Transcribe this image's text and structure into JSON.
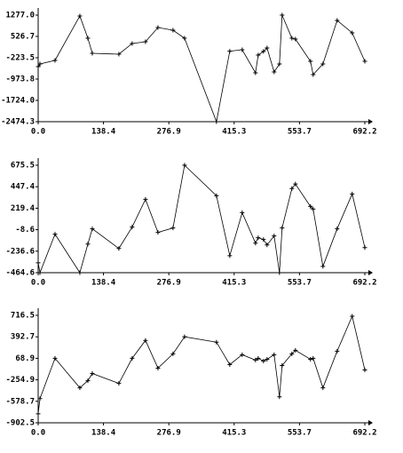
{
  "chart_data": [
    {
      "type": "line",
      "color": "#000000",
      "x": [
        0,
        3.8,
        35.7,
        88.3,
        105.3,
        114.7,
        171,
        199.2,
        227.4,
        253.8,
        285.7,
        310.2,
        377.8,
        406,
        432.3,
        460.5,
        466.2,
        477.4,
        485,
        500,
        511.3,
        516.9,
        537.6,
        545.1,
        577,
        582.7,
        603.4,
        633.5,
        665.4,
        692.2
      ],
      "values": [
        -536,
        -442,
        -317,
        1246,
        464,
        -67,
        -98,
        277,
        339,
        839,
        746,
        464,
        -2474.3,
        8,
        58,
        -755,
        -130,
        -2,
        120,
        -724,
        -442,
        1277,
        464,
        433,
        -349,
        -817,
        -442,
        1089,
        652,
        -349
      ],
      "xlim": [
        0,
        692.2
      ],
      "xticks": [
        {
          "value": 0,
          "label": "0.0"
        },
        138.4,
        276.9,
        415.3,
        553.7,
        692.2
      ],
      "ylim": [
        -2474.3,
        1277
      ],
      "yticks": [
        -2474.3,
        {
          "value": -1724,
          "label": "-1724.0"
        },
        -973.8,
        -223.5,
        526.7,
        {
          "value": 1277,
          "label": "1277.0"
        }
      ]
    },
    {
      "type": "line",
      "color": "#000000",
      "x": [
        0,
        3.8,
        35.7,
        88.3,
        105.3,
        114.7,
        171,
        199.2,
        227.4,
        253.8,
        285.7,
        310.2,
        377.8,
        406,
        432.3,
        460.5,
        466.2,
        477.4,
        485,
        500,
        511.3,
        516.9,
        537.6,
        545.1,
        577,
        582.7,
        603.4,
        633.5,
        665.4,
        692.2
      ],
      "values": [
        -360,
        -464.6,
        -56,
        -464.6,
        -161,
        1,
        -208,
        20,
        314,
        -37,
        10,
        675.5,
        352,
        -284,
        172,
        -151,
        -94,
        -113,
        -170,
        -75,
        -464.6,
        10,
        428,
        476,
        238,
        210,
        -398,
        1,
        371,
        -199
      ],
      "xlim": [
        0,
        692.2
      ],
      "xticks": [
        {
          "value": 0,
          "label": "0.0"
        },
        138.4,
        276.9,
        415.3,
        553.7,
        692.2
      ],
      "ylim": [
        -464.6,
        675.5
      ],
      "yticks": [
        -464.6,
        -236.6,
        -8.6,
        219.4,
        447.4,
        675.5
      ]
    },
    {
      "type": "line",
      "color": "#000000",
      "x": [
        0,
        3.8,
        35.7,
        88.3,
        105.3,
        114.7,
        171,
        199.2,
        227.4,
        253.8,
        285.7,
        310.2,
        377.8,
        406,
        432.3,
        460.5,
        466.2,
        477.4,
        485,
        500,
        511.3,
        516.9,
        537.6,
        545.1,
        577,
        582.7,
        603.4,
        633.5,
        665.4,
        692.2
      ],
      "values": [
        -767,
        -538,
        69,
        -376,
        -268,
        -160,
        -309,
        69,
        339,
        -79,
        136,
        393,
        312,
        -26,
        123,
        42,
        69,
        28,
        55,
        123,
        -511,
        -39,
        136,
        190,
        55,
        69,
        -376,
        177,
        703,
        -106
      ],
      "xlim": [
        0,
        692.2
      ],
      "xticks": [
        {
          "value": 0,
          "label": "0.0"
        },
        138.4,
        276.9,
        415.3,
        553.7,
        692.2
      ],
      "ylim": [
        -902.5,
        716.5
      ],
      "yticks": [
        -902.5,
        -578.7,
        -254.9,
        68.9,
        392.7,
        716.5
      ]
    }
  ]
}
